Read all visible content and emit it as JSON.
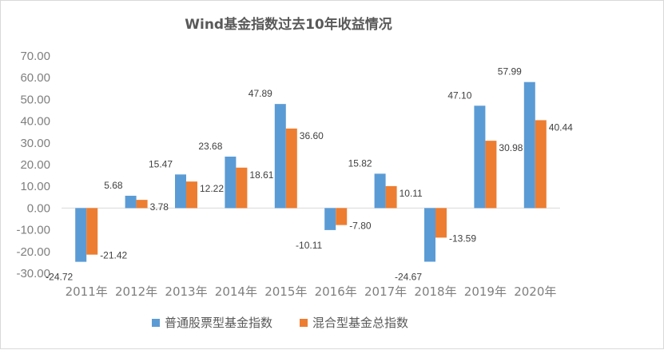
{
  "chart_data": {
    "type": "bar",
    "title": "Wind基金指数过去10年收益情况",
    "categories": [
      "2011年",
      "2012年",
      "2013年",
      "2014年",
      "2015年",
      "2016年",
      "2017年",
      "2018年",
      "2019年",
      "2020年"
    ],
    "series": [
      {
        "name": "普通股票型基金指数",
        "color": "#5b9bd5",
        "values": [
          -24.72,
          5.68,
          15.47,
          23.68,
          47.89,
          -10.11,
          15.82,
          -24.67,
          47.1,
          57.99
        ]
      },
      {
        "name": "混合型基金总指数",
        "color": "#ed7d31",
        "values": [
          -21.42,
          3.78,
          12.22,
          18.61,
          36.6,
          -7.8,
          10.11,
          -13.59,
          30.98,
          40.44
        ]
      }
    ],
    "ylim": [
      -30,
      70
    ],
    "yticks": [
      "70.00",
      "60.00",
      "50.00",
      "40.00",
      "30.00",
      "20.00",
      "10.00",
      "0.00",
      "-10.00",
      "-20.00",
      "-30.00"
    ],
    "grid": false,
    "legend": "bottom",
    "xlabel": "",
    "ylabel": ""
  }
}
